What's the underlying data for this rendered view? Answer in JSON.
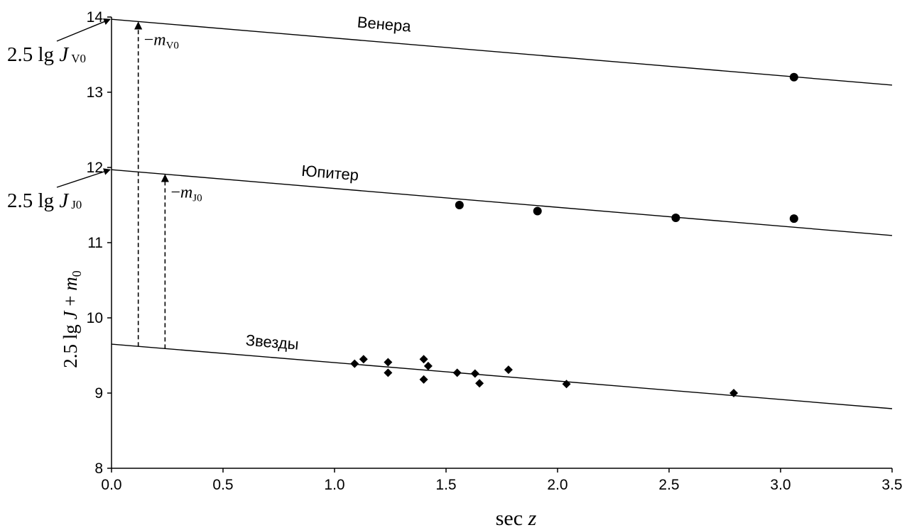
{
  "chart_data": {
    "type": "scatter",
    "xlabel": "sec z",
    "ylabel": "2.5 lg J + m0",
    "xlim": [
      0,
      3.5
    ],
    "ylim": [
      8,
      14
    ],
    "x_ticks": [
      "0.0",
      "0.5",
      "1.0",
      "1.5",
      "2.0",
      "2.5",
      "3.0",
      "3.5"
    ],
    "y_ticks": [
      "8",
      "9",
      "10",
      "11",
      "12",
      "13",
      "14"
    ],
    "grid": false,
    "series": [
      {
        "name": "Венера",
        "marker": "circle",
        "points": [
          [
            3.06,
            13.2
          ]
        ],
        "fit_line": {
          "intercept": 13.97,
          "slope": -0.25
        }
      },
      {
        "name": "Юпитер",
        "marker": "circle",
        "points": [
          [
            1.56,
            11.5
          ],
          [
            1.91,
            11.42
          ],
          [
            2.53,
            11.33
          ],
          [
            3.06,
            11.32
          ]
        ],
        "fit_line": {
          "intercept": 11.97,
          "slope": -0.25
        }
      },
      {
        "name": "Звезды",
        "marker": "diamond",
        "points": [
          [
            1.09,
            9.39
          ],
          [
            1.13,
            9.45
          ],
          [
            1.24,
            9.41
          ],
          [
            1.24,
            9.27
          ],
          [
            1.4,
            9.45
          ],
          [
            1.4,
            9.18
          ],
          [
            1.42,
            9.36
          ],
          [
            1.55,
            9.27
          ],
          [
            1.63,
            9.26
          ],
          [
            1.65,
            9.13
          ],
          [
            1.78,
            9.31
          ],
          [
            2.04,
            9.12
          ],
          [
            2.79,
            9.0
          ]
        ],
        "fit_line": {
          "intercept": 9.65,
          "slope": -0.245
        }
      }
    ],
    "annotations": {
      "venus_intercept": {
        "text": "2.5 lg J",
        "sub": "V0"
      },
      "jupiter_intercept": {
        "text": "2.5 lg J",
        "sub": "J0"
      },
      "venus_offset": {
        "text": "−m",
        "sub": "V0",
        "x": 0.12
      },
      "jupiter_offset": {
        "text": "−m",
        "sub": "J0",
        "x": 0.24
      }
    }
  }
}
